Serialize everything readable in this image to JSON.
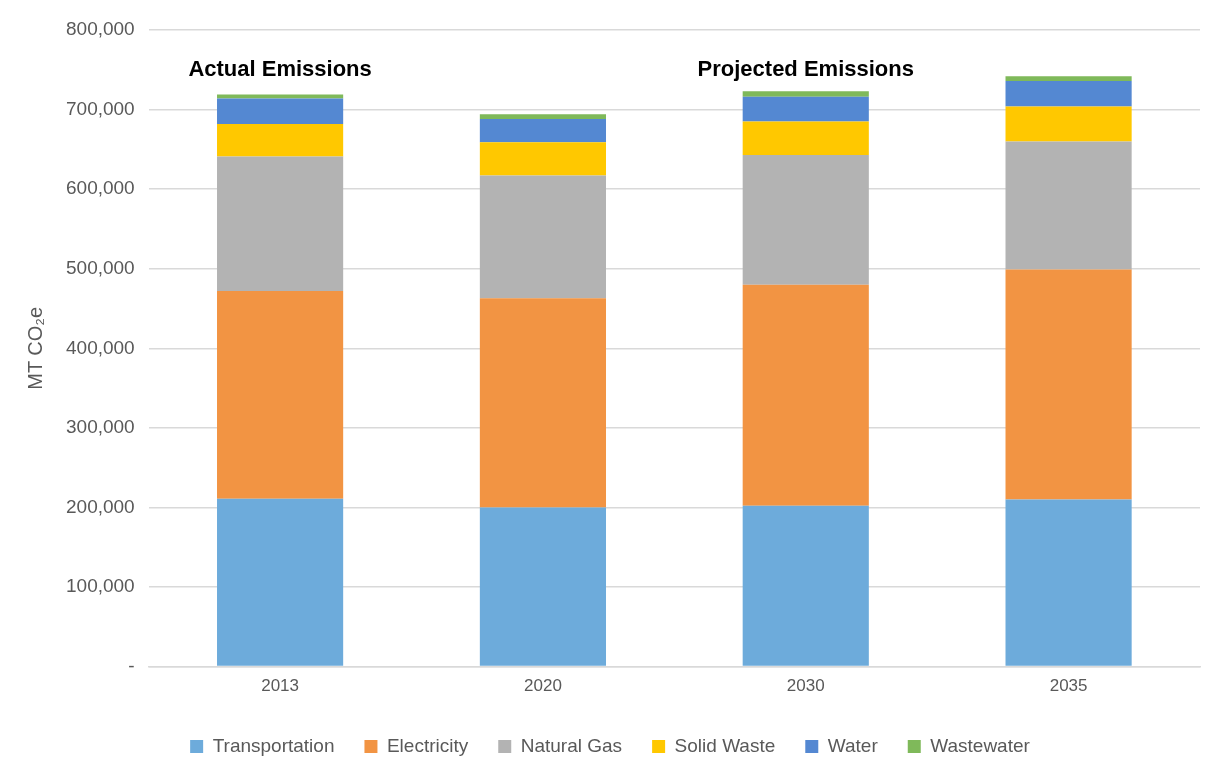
{
  "chart_data": {
    "type": "bar",
    "stacked": true,
    "ylabel": "MT CO₂e",
    "categories": [
      "2013",
      "2020",
      "2030",
      "2035"
    ],
    "series": [
      {
        "name": "Transportation",
        "color": "#6dabdb",
        "values": [
          211000,
          200000,
          202000,
          210000
        ]
      },
      {
        "name": "Electricity",
        "color": "#f29443",
        "values": [
          261000,
          263000,
          278000,
          289000
        ]
      },
      {
        "name": "Natural Gas",
        "color": "#b3b3b3",
        "values": [
          169000,
          154000,
          163000,
          161000
        ]
      },
      {
        "name": "Solid Waste",
        "color": "#ffc800",
        "values": [
          41000,
          42000,
          42000,
          44000
        ]
      },
      {
        "name": "Water",
        "color": "#5488d2",
        "values": [
          32000,
          29000,
          31000,
          32000
        ]
      },
      {
        "name": "Wastewater",
        "color": "#7fb95a",
        "values": [
          5000,
          6000,
          7000,
          6000
        ]
      }
    ],
    "ylim": [
      0,
      800000
    ],
    "yticks": [
      {
        "value": 0,
        "label": "-"
      },
      {
        "value": 100000,
        "label": "100,000"
      },
      {
        "value": 200000,
        "label": "200,000"
      },
      {
        "value": 300000,
        "label": "300,000"
      },
      {
        "value": 400000,
        "label": "400,000"
      },
      {
        "value": 500000,
        "label": "500,000"
      },
      {
        "value": 600000,
        "label": "600,000"
      },
      {
        "value": 700000,
        "label": "700,000"
      },
      {
        "value": 800000,
        "label": "800,000"
      }
    ],
    "grid": "y",
    "legend": "bottom",
    "annotations": [
      "Actual Emissions",
      "Projected Emissions"
    ]
  }
}
